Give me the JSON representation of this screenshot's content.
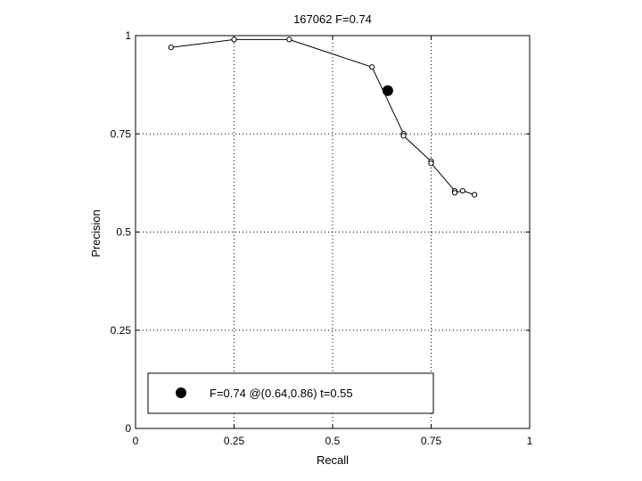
{
  "chart_data": {
    "type": "line",
    "title": "167062 F=0.74",
    "xlabel": "Recall",
    "ylabel": "Precision",
    "xlim": [
      0,
      1
    ],
    "ylim": [
      0,
      1
    ],
    "grid": true,
    "x_ticks": [
      0,
      0.25,
      0.5,
      0.75,
      1
    ],
    "x_tick_labels": [
      "0",
      "0.25",
      "0.5",
      "0.75",
      "1"
    ],
    "y_ticks": [
      0,
      0.25,
      0.5,
      0.75,
      1
    ],
    "y_tick_labels": [
      "0",
      "0.25",
      "0.5",
      "0.75",
      "1"
    ],
    "series": [
      {
        "x": [
          0.09,
          0.25,
          0.39,
          0.6,
          0.68,
          0.68,
          0.75,
          0.75,
          0.81,
          0.81,
          0.83,
          0.86
        ],
        "y": [
          0.97,
          0.99,
          0.99,
          0.92,
          0.75,
          0.745,
          0.68,
          0.675,
          0.605,
          0.6,
          0.605,
          0.595
        ],
        "color": "#000000",
        "marker": "circle-open"
      }
    ],
    "highlight_point": {
      "x": 0.64,
      "y": 0.86,
      "color": "#000000",
      "marker": "circle-filled"
    },
    "legend": {
      "position": "bottom-left",
      "entries": [
        {
          "label": "F=0.74 @(0.64,0.86) t=0.55",
          "marker": "circle-filled"
        }
      ]
    }
  }
}
